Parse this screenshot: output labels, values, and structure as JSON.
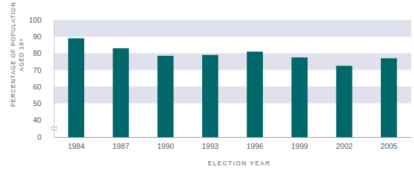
{
  "chart_data": {
    "type": "bar",
    "categories": [
      "1984",
      "1987",
      "1990",
      "1993",
      "1996",
      "1999",
      "2002",
      "2005"
    ],
    "values": [
      89,
      83,
      78.5,
      79,
      81,
      77.5,
      72.5,
      77
    ],
    "color": "#00676a",
    "ylim": [
      0,
      100
    ],
    "yticks": [
      0,
      40,
      50,
      60,
      70,
      80,
      90,
      100
    ],
    "grid": true,
    "xlabel": "ELECTION YEAR",
    "ylabel": "PERCENTAGE OF POPULATION AGED 18+"
  }
}
